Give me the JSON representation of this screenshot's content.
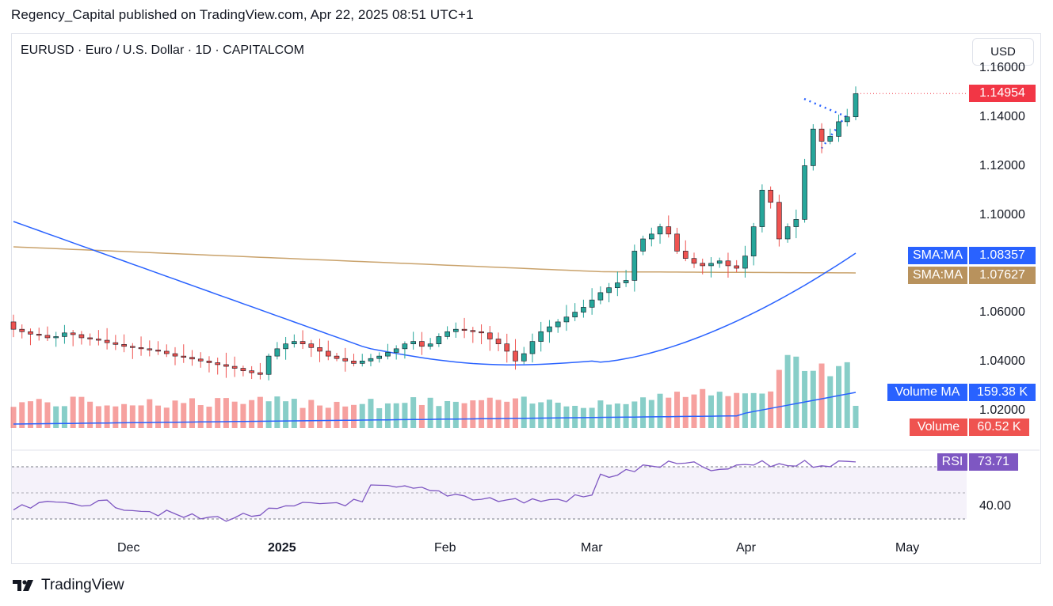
{
  "header": {
    "published_text": "Regency_Capital published on TradingView.com, Apr 22, 2025 08:51 UTC+1"
  },
  "symbol": {
    "title": "EURUSD · Euro / U.S. Dollar · 1D · CAPITALCOM"
  },
  "currency_button": {
    "label": "USD"
  },
  "price_axis": {
    "ticks": [
      "1.16000",
      "1.14000",
      "1.12000",
      "1.10000",
      "1.06000",
      "1.04000",
      "1.02000"
    ],
    "rsi_tick": "40.00"
  },
  "labels": {
    "last_price": "1.14954",
    "sma_fast": {
      "name": "SMA:MA",
      "value": "1.08357"
    },
    "sma_slow": {
      "name": "SMA:MA",
      "value": "1.07627"
    },
    "volume_ma": {
      "name": "Volume MA",
      "value": "159.38 K"
    },
    "volume": {
      "name": "Volume",
      "value": "60.52 K"
    },
    "rsi": {
      "name": "RSI",
      "value": "73.71"
    }
  },
  "time_axis": {
    "labels": [
      "Dec",
      "2025",
      "Feb",
      "Mar",
      "Apr",
      "May"
    ]
  },
  "footer": {
    "brand": "TradingView"
  },
  "colors": {
    "up": "#26a69a",
    "down": "#ef5350",
    "sma_fast": "#2962ff",
    "sma_slow": "#c9a26b",
    "volume_ma": "#2962ff",
    "rsi": "#7e57c2",
    "last_price_bg": "#f23645",
    "sma_fast_bg": "#2962ff",
    "sma_slow_bg": "#b8925d",
    "volume_ma_bg": "#2962ff",
    "volume_bg": "#ef5350",
    "rsi_bg": "#7e57c2"
  },
  "chart_data": {
    "type": "candlestick",
    "symbol": "EURUSD",
    "timeframe": "1D",
    "x_range": [
      "Nov 2024",
      "Apr 22, 2025"
    ],
    "ylim": [
      1.01,
      1.165
    ],
    "closes": [
      1.053,
      1.052,
      1.051,
      1.0505,
      1.0495,
      1.05,
      1.0515,
      1.0508,
      1.0495,
      1.049,
      1.0485,
      1.0475,
      1.0468,
      1.046,
      1.0455,
      1.045,
      1.0445,
      1.044,
      1.043,
      1.042,
      1.0415,
      1.0408,
      1.04,
      1.0393,
      1.0385,
      1.0378,
      1.037,
      1.036,
      1.0352,
      1.0345,
      1.042,
      1.045,
      1.047,
      1.048,
      1.047,
      1.0455,
      1.044,
      1.042,
      1.041,
      1.04,
      1.039,
      1.04,
      1.041,
      1.042,
      1.0435,
      1.045,
      1.047,
      1.048,
      1.046,
      1.047,
      1.05,
      1.052,
      1.053,
      1.0525,
      1.052,
      1.0515,
      1.049,
      1.047,
      1.044,
      1.04,
      1.043,
      1.048,
      1.052,
      1.054,
      1.056,
      1.058,
      1.06,
      1.062,
      1.065,
      1.068,
      1.07,
      1.072,
      1.073,
      1.085,
      1.09,
      1.092,
      1.095,
      1.092,
      1.085,
      1.082,
      1.08,
      1.079,
      1.08,
      1.081,
      1.079,
      1.078,
      1.083,
      1.095,
      1.11,
      1.105,
      1.09,
      1.095,
      1.098,
      1.12,
      1.135,
      1.13,
      1.132,
      1.138,
      1.14,
      1.1495
    ],
    "last_close": 1.14954,
    "sma_fast_last": 1.08357,
    "sma_slow_last": 1.07627,
    "volume_ma_last": 159.38,
    "volume_last": 60.52,
    "rsi_last": 73.71
  }
}
